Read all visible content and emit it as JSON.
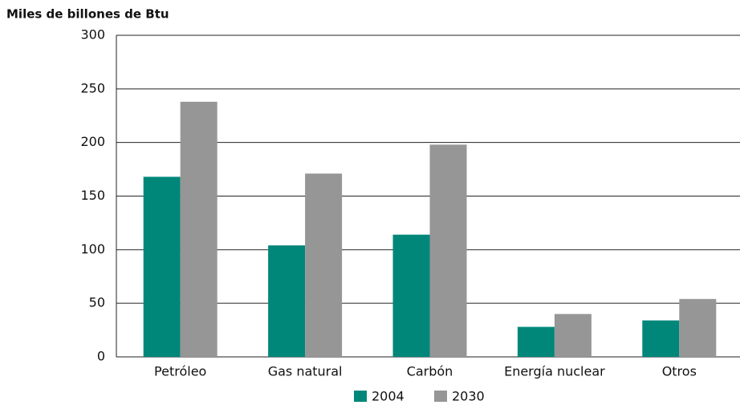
{
  "chart_data": {
    "type": "bar",
    "y_axis_label": "Miles de billones de Btu",
    "categories": [
      "Petróleo",
      "Gas natural",
      "Carbón",
      "Energía nuclear",
      "Otros"
    ],
    "series": [
      {
        "name": "2004",
        "color": "#00877a",
        "values": [
          168,
          104,
          114,
          28,
          34
        ]
      },
      {
        "name": "2030",
        "color": "#969696",
        "values": [
          238,
          171,
          198,
          40,
          54
        ]
      }
    ],
    "ylim": [
      0,
      300
    ],
    "yticks": [
      0,
      50,
      100,
      150,
      200,
      250,
      300
    ],
    "grid": true,
    "legend": "bottom"
  }
}
